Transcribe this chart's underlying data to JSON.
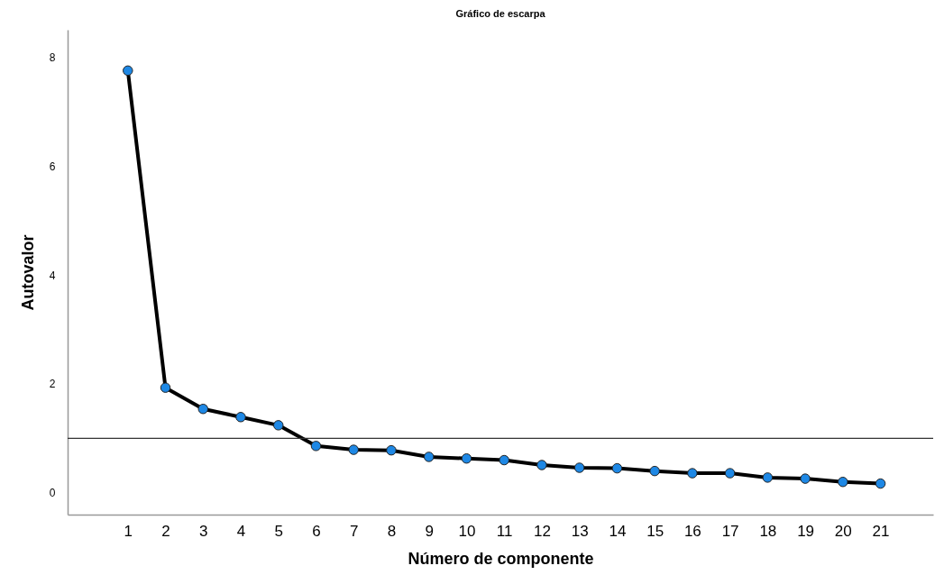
{
  "chart_data": {
    "type": "line",
    "title": "Gráfico de escarpa",
    "xlabel": "Número de componente",
    "ylabel": "Autovalor",
    "x": [
      1,
      2,
      3,
      4,
      5,
      6,
      7,
      8,
      9,
      10,
      11,
      12,
      13,
      14,
      15,
      16,
      17,
      18,
      19,
      20,
      21
    ],
    "series": [
      {
        "color": "#1e88e5",
        "values": [
          7.75,
          1.93,
          1.54,
          1.39,
          1.24,
          0.86,
          0.79,
          0.78,
          0.66,
          0.63,
          0.6,
          0.51,
          0.46,
          0.45,
          0.4,
          0.36,
          0.36,
          0.28,
          0.26,
          0.2,
          0.17
        ]
      }
    ],
    "xlim": [
      -0.6,
      22.4
    ],
    "xticks": [
      1,
      2,
      3,
      4,
      5,
      6,
      7,
      8,
      9,
      10,
      11,
      12,
      13,
      14,
      15,
      16,
      17,
      18,
      19,
      20,
      21
    ],
    "ylim": [
      -0.4,
      8.5
    ],
    "yticks": [
      0,
      2,
      4,
      6,
      8
    ],
    "ref_lines": [
      {
        "axis": "y",
        "value": 1,
        "color": "#333333"
      }
    ],
    "marker": "circle",
    "line_style": "solid",
    "grid": false
  }
}
